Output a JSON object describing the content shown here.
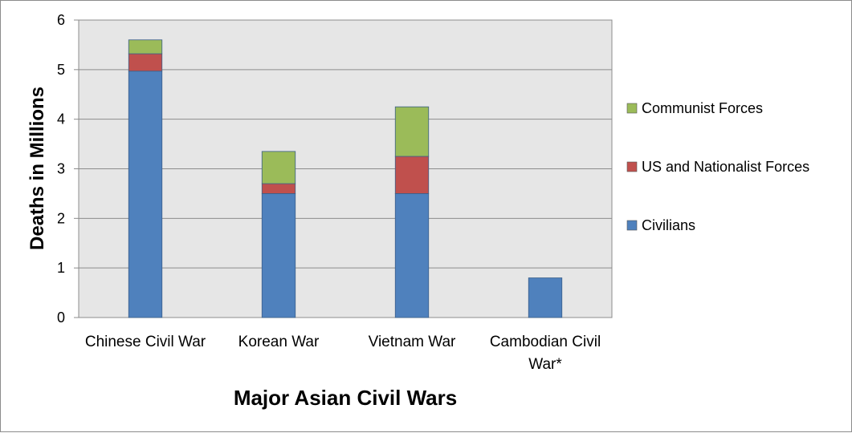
{
  "chart_data": {
    "type": "bar",
    "stacked": true,
    "title": "",
    "xlabel": "Major Asian Civil Wars",
    "ylabel": "Deaths in Millions",
    "ylim": [
      0,
      6
    ],
    "yticks": [
      0,
      1,
      2,
      3,
      4,
      5,
      6
    ],
    "grid": true,
    "legend_position": "right",
    "categories": [
      "Chinese Civil War",
      "Korean War",
      "Vietnam War",
      "Cambodian Civil War*"
    ],
    "series": [
      {
        "name": "Civilians",
        "color": "#4f81bd",
        "values": [
          4.97,
          2.5,
          2.5,
          0.8
        ]
      },
      {
        "name": "US and Nationalist Forces",
        "color": "#c0504d",
        "values": [
          0.35,
          0.2,
          0.75,
          0
        ]
      },
      {
        "name": "Communist Forces",
        "color": "#9bbb59",
        "values": [
          0.28,
          0.65,
          1.0,
          0
        ]
      }
    ],
    "plot_background": "#e6e6e6"
  }
}
